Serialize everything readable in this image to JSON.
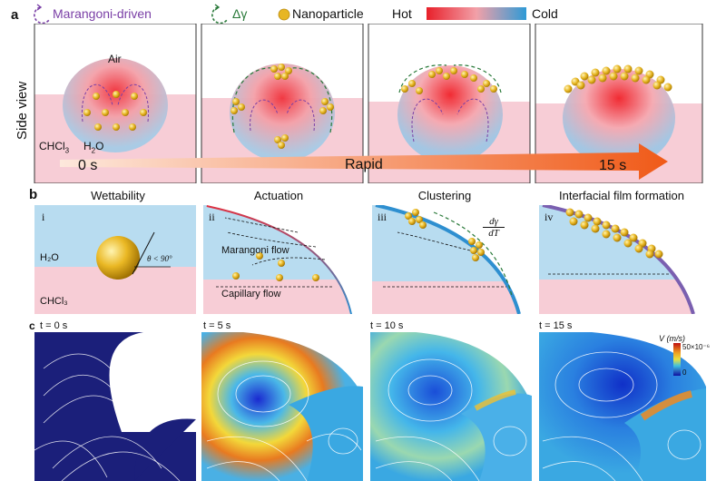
{
  "figure": {
    "panel_a": "a",
    "panel_b": "b",
    "panel_c": "c",
    "legend": {
      "marangoni": "Marangoni-driven",
      "delta_gamma": "Δγ",
      "nanoparticle": "Nanoparticle",
      "hot": "Hot",
      "cold": "Cold"
    },
    "side_view": "Side view",
    "air": "Air",
    "chcl3": "CHCl",
    "chcl3_sub": "3",
    "h2o": "H",
    "h2o_sub": "2",
    "h2o_tail": "O",
    "time_start": "0 s",
    "rapid": "Rapid",
    "time_end": "15 s",
    "b_titles": [
      "Wettability",
      "Actuation",
      "Clustering",
      "Interfacial film formation"
    ],
    "b_romans": [
      "i",
      "ii",
      "iii",
      "iv"
    ],
    "b_h2o": "H₂O",
    "b_chcl3": "CHCl₃",
    "theta": "θ < 90°",
    "marangoni_flow": "Marangoni flow",
    "capillary_flow": "Capillary flow",
    "dgamma_num": "dγ",
    "dgamma_den": "dT",
    "c_times": [
      "t = 0 s",
      "t = 5 s",
      "t = 10 s",
      "t = 15 s"
    ],
    "colorbar_title": "V (m/s)",
    "colorbar_max": "50×10⁻⁶",
    "colorbar_min": "0",
    "colors": {
      "pink": "#f7cdd6",
      "blue": "#b8dcf0",
      "hot": "#e8202a",
      "cold": "#2e9ad6",
      "gold": "#e7b623",
      "navy": "#1b1f7a"
    }
  }
}
